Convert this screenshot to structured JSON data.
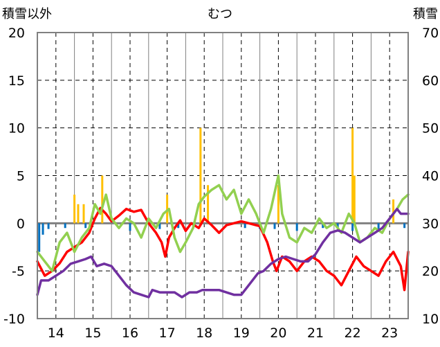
{
  "chart_data": {
    "type": "line",
    "title": "むつ",
    "y_left_label": "積雪以外",
    "y_right_label": "積雪",
    "y_left_range": [
      -10,
      20
    ],
    "y_left_ticks": [
      "20",
      "15",
      "10",
      "5",
      "0",
      "-5",
      "-10"
    ],
    "y_right_range": [
      10,
      70
    ],
    "y_right_ticks": [
      "70",
      "60",
      "50",
      "40",
      "30",
      "20",
      "10"
    ],
    "x_range": [
      13.5,
      23.5
    ],
    "x_ticks": [
      "14",
      "15",
      "16",
      "17",
      "18",
      "19",
      "20",
      "21",
      "22",
      "23"
    ],
    "grid": true,
    "zero_line": true,
    "colors": {
      "red": "#ff0000",
      "green": "#92d050",
      "purple": "#7030a0",
      "orange": "#ffc000",
      "blue": "#0070c0",
      "frame": "#808080",
      "grid": "#000000"
    },
    "series": [
      {
        "axis": "left",
        "color": "#ff0000",
        "points": [
          [
            13.5,
            -4
          ],
          [
            13.7,
            -5.5
          ],
          [
            13.9,
            -5
          ],
          [
            14.1,
            -4.2
          ],
          [
            14.3,
            -3
          ],
          [
            14.5,
            -2.5
          ],
          [
            14.7,
            -2
          ],
          [
            14.9,
            -1
          ],
          [
            15.05,
            0.5
          ],
          [
            15.2,
            1.6
          ],
          [
            15.35,
            1
          ],
          [
            15.5,
            0.2
          ],
          [
            15.7,
            0.8
          ],
          [
            15.9,
            1.5
          ],
          [
            16.1,
            1.2
          ],
          [
            16.3,
            1.4
          ],
          [
            16.5,
            0
          ],
          [
            16.7,
            -1
          ],
          [
            16.85,
            -2
          ],
          [
            16.95,
            -3.5
          ],
          [
            17.05,
            -1.5
          ],
          [
            17.2,
            -0.5
          ],
          [
            17.35,
            0.3
          ],
          [
            17.5,
            -0.8
          ],
          [
            17.65,
            0
          ],
          [
            17.85,
            -0.5
          ],
          [
            18.0,
            0.5
          ],
          [
            18.2,
            -0.2
          ],
          [
            18.4,
            -1
          ],
          [
            18.6,
            -0.2
          ],
          [
            18.8,
            0
          ],
          [
            19.0,
            0.2
          ],
          [
            19.2,
            0
          ],
          [
            19.5,
            -0.3
          ],
          [
            19.7,
            -2
          ],
          [
            19.85,
            -4
          ],
          [
            19.95,
            -5
          ],
          [
            20.1,
            -3.5
          ],
          [
            20.3,
            -4
          ],
          [
            20.5,
            -5
          ],
          [
            20.7,
            -4
          ],
          [
            20.9,
            -3.5
          ],
          [
            21.1,
            -4
          ],
          [
            21.3,
            -5
          ],
          [
            21.5,
            -5.5
          ],
          [
            21.7,
            -6.5
          ],
          [
            21.9,
            -5
          ],
          [
            22.1,
            -3.5
          ],
          [
            22.3,
            -4.5
          ],
          [
            22.5,
            -5
          ],
          [
            22.7,
            -5.5
          ],
          [
            22.9,
            -4
          ],
          [
            23.1,
            -3
          ],
          [
            23.3,
            -4.5
          ],
          [
            23.4,
            -7
          ],
          [
            23.5,
            -3
          ]
        ]
      },
      {
        "axis": "left",
        "color": "#92d050",
        "points": [
          [
            13.5,
            -3
          ],
          [
            13.7,
            -4
          ],
          [
            13.9,
            -5
          ],
          [
            14.1,
            -2
          ],
          [
            14.3,
            -1
          ],
          [
            14.5,
            -3
          ],
          [
            14.7,
            -1.5
          ],
          [
            14.9,
            -0.5
          ],
          [
            15.05,
            2
          ],
          [
            15.2,
            1
          ],
          [
            15.35,
            3
          ],
          [
            15.5,
            0.5
          ],
          [
            15.7,
            -0.5
          ],
          [
            15.9,
            0.5
          ],
          [
            16.1,
            0
          ],
          [
            16.3,
            -1.5
          ],
          [
            16.5,
            0.5
          ],
          [
            16.7,
            -0.5
          ],
          [
            16.9,
            1
          ],
          [
            17.05,
            1.5
          ],
          [
            17.2,
            -1.5
          ],
          [
            17.35,
            -3
          ],
          [
            17.5,
            -2
          ],
          [
            17.7,
            -0.5
          ],
          [
            17.85,
            2
          ],
          [
            18.0,
            2.8
          ],
          [
            18.2,
            3.5
          ],
          [
            18.4,
            4
          ],
          [
            18.6,
            2.5
          ],
          [
            18.8,
            3.5
          ],
          [
            19.0,
            1
          ],
          [
            19.2,
            2.5
          ],
          [
            19.4,
            1
          ],
          [
            19.6,
            -1
          ],
          [
            19.8,
            1.5
          ],
          [
            20.0,
            5
          ],
          [
            20.1,
            1
          ],
          [
            20.3,
            -1.5
          ],
          [
            20.5,
            -2
          ],
          [
            20.7,
            -0.5
          ],
          [
            20.9,
            -1
          ],
          [
            21.1,
            0.5
          ],
          [
            21.3,
            -0.5
          ],
          [
            21.5,
            0
          ],
          [
            21.7,
            -1
          ],
          [
            21.9,
            1
          ],
          [
            22.05,
            0
          ],
          [
            22.2,
            -2
          ],
          [
            22.4,
            -1.5
          ],
          [
            22.6,
            -0.5
          ],
          [
            22.8,
            -1
          ],
          [
            23.0,
            0.5
          ],
          [
            23.2,
            1.5
          ],
          [
            23.35,
            2.5
          ],
          [
            23.5,
            3
          ]
        ]
      },
      {
        "axis": "right",
        "color": "#7030a0",
        "points": [
          [
            13.5,
            15
          ],
          [
            13.6,
            18
          ],
          [
            13.8,
            18
          ],
          [
            14.0,
            19
          ],
          [
            14.2,
            20
          ],
          [
            14.4,
            21.5
          ],
          [
            14.6,
            22
          ],
          [
            14.8,
            22.5
          ],
          [
            14.95,
            23
          ],
          [
            15.1,
            21
          ],
          [
            15.3,
            21.5
          ],
          [
            15.5,
            21
          ],
          [
            15.7,
            19
          ],
          [
            15.9,
            17
          ],
          [
            16.1,
            15.5
          ],
          [
            16.3,
            15
          ],
          [
            16.5,
            14.5
          ],
          [
            16.6,
            16
          ],
          [
            16.8,
            15.5
          ],
          [
            17.0,
            15.5
          ],
          [
            17.2,
            15.5
          ],
          [
            17.4,
            14.5
          ],
          [
            17.6,
            15.5
          ],
          [
            17.8,
            15.5
          ],
          [
            17.95,
            16
          ],
          [
            18.1,
            16
          ],
          [
            18.4,
            16
          ],
          [
            18.8,
            15
          ],
          [
            19.0,
            15
          ],
          [
            19.2,
            17
          ],
          [
            19.45,
            19.5
          ],
          [
            19.6,
            20
          ],
          [
            19.8,
            21.5
          ],
          [
            20.0,
            22.5
          ],
          [
            20.2,
            23
          ],
          [
            20.4,
            22.5
          ],
          [
            20.6,
            22
          ],
          [
            20.8,
            22
          ],
          [
            21.0,
            23.5
          ],
          [
            21.2,
            26
          ],
          [
            21.4,
            28
          ],
          [
            21.6,
            28.5
          ],
          [
            21.8,
            28
          ],
          [
            22.0,
            27
          ],
          [
            22.2,
            26
          ],
          [
            22.4,
            27
          ],
          [
            22.6,
            28
          ],
          [
            22.8,
            29
          ],
          [
            23.0,
            31
          ],
          [
            23.2,
            33
          ],
          [
            23.3,
            32
          ],
          [
            23.5,
            32
          ]
        ]
      }
    ],
    "bars_orange": [
      [
        14.5,
        3
      ],
      [
        14.6,
        2
      ],
      [
        14.75,
        2
      ],
      [
        15.25,
        5
      ],
      [
        17.0,
        3
      ],
      [
        17.9,
        10
      ],
      [
        18.1,
        4
      ],
      [
        20.0,
        4
      ],
      [
        22.0,
        10
      ],
      [
        22.05,
        5
      ],
      [
        23.1,
        2.5
      ]
    ],
    "bars_blue": [
      [
        13.55,
        -3
      ],
      [
        13.65,
        -1.2
      ],
      [
        13.8,
        -0.6
      ],
      [
        14.25,
        -0.5
      ],
      [
        14.8,
        -0.5
      ],
      [
        16.0,
        -0.8
      ],
      [
        16.8,
        -0.6
      ],
      [
        17.3,
        -0.5
      ],
      [
        19.1,
        -0.5
      ],
      [
        19.5,
        -0.6
      ],
      [
        19.9,
        -0.6
      ],
      [
        20.5,
        -0.8
      ],
      [
        21.2,
        -0.5
      ],
      [
        21.6,
        -0.5
      ],
      [
        22.0,
        -0.8
      ],
      [
        22.7,
        -0.6
      ],
      [
        23.4,
        -0.5
      ]
    ]
  }
}
